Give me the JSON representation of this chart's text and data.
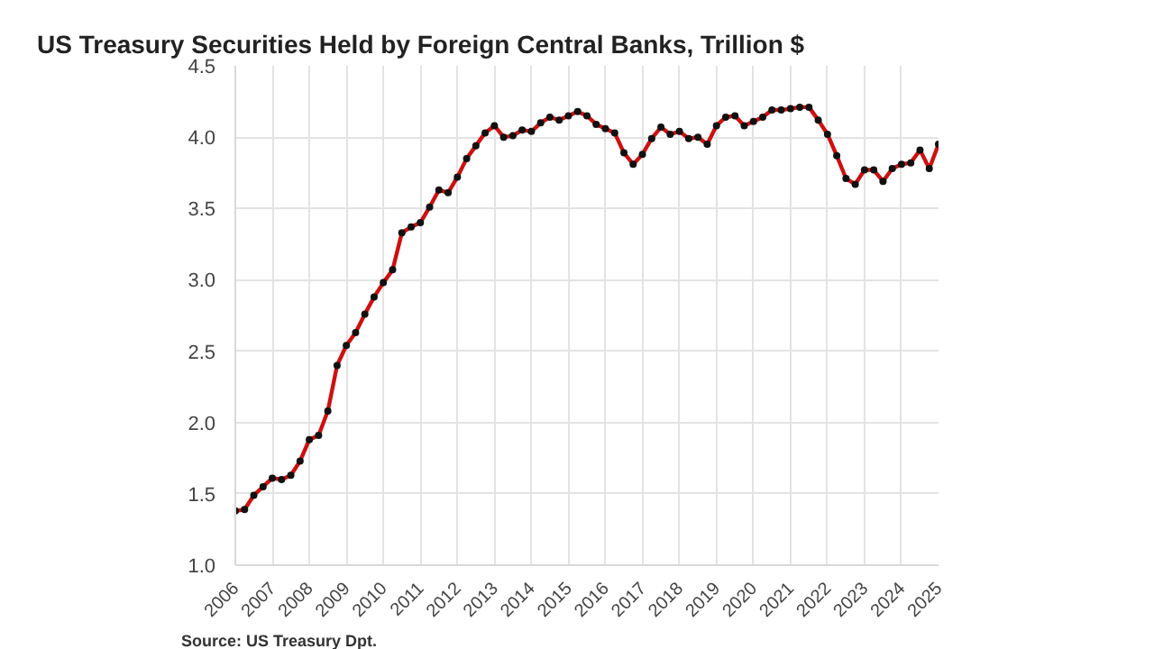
{
  "chart_data": {
    "type": "line",
    "title": "US Treasury Securities Held by Foreign Central Banks, Trillion $",
    "x": [
      2006.0,
      2006.25,
      2006.5,
      2006.75,
      2007.0,
      2007.25,
      2007.5,
      2007.75,
      2008.0,
      2008.25,
      2008.5,
      2008.75,
      2009.0,
      2009.25,
      2009.5,
      2009.75,
      2010.0,
      2010.25,
      2010.5,
      2010.75,
      2011.0,
      2011.25,
      2011.5,
      2011.75,
      2012.0,
      2012.25,
      2012.5,
      2012.75,
      2013.0,
      2013.25,
      2013.5,
      2013.75,
      2014.0,
      2014.25,
      2014.5,
      2014.75,
      2015.0,
      2015.25,
      2015.5,
      2015.75,
      2016.0,
      2016.25,
      2016.5,
      2016.75,
      2017.0,
      2017.25,
      2017.5,
      2017.75,
      2018.0,
      2018.25,
      2018.5,
      2018.75,
      2019.0,
      2019.25,
      2019.5,
      2019.75,
      2020.0,
      2020.25,
      2020.5,
      2020.75,
      2021.0,
      2021.25,
      2021.5,
      2021.75,
      2022.0,
      2022.25,
      2022.5,
      2022.75,
      2023.0,
      2023.25,
      2023.5,
      2023.75,
      2024.0,
      2024.25,
      2024.5,
      2024.75,
      2025.0
    ],
    "series": [
      {
        "color": "#cc1111",
        "values": [
          1.38,
          1.39,
          1.49,
          1.55,
          1.61,
          1.6,
          1.63,
          1.73,
          1.88,
          1.91,
          2.08,
          2.4,
          2.54,
          2.63,
          2.76,
          2.88,
          2.98,
          3.07,
          3.33,
          3.37,
          3.4,
          3.51,
          3.63,
          3.61,
          3.72,
          3.85,
          3.94,
          4.03,
          4.08,
          4.0,
          4.01,
          4.05,
          4.04,
          4.1,
          4.14,
          4.12,
          4.15,
          4.18,
          4.15,
          4.09,
          4.06,
          4.03,
          3.89,
          3.81,
          3.88,
          3.99,
          4.07,
          4.02,
          4.04,
          3.99,
          4.0,
          3.95,
          4.08,
          4.14,
          4.15,
          4.08,
          4.11,
          4.14,
          4.19,
          4.19,
          4.2,
          4.21,
          4.21,
          4.12,
          4.02,
          3.87,
          3.71,
          3.67,
          3.77,
          3.77,
          3.69,
          3.78,
          3.81,
          3.82,
          3.91,
          3.78,
          3.95
        ]
      }
    ],
    "xlim": [
      2006,
      2025
    ],
    "xticks": [
      2006,
      2007,
      2008,
      2009,
      2010,
      2011,
      2012,
      2013,
      2014,
      2015,
      2016,
      2017,
      2018,
      2019,
      2020,
      2021,
      2022,
      2023,
      2024,
      2025
    ],
    "ylim": [
      1.0,
      4.5
    ],
    "yticks": [
      {
        "value": 1.0,
        "label": "1.0"
      },
      {
        "value": 1.5,
        "label": "1.5"
      },
      {
        "value": 2.0,
        "label": "2.0"
      },
      {
        "value": 2.5,
        "label": "2.5"
      },
      {
        "value": 3.0,
        "label": "3.0"
      },
      {
        "value": 3.5,
        "label": "3.5"
      },
      {
        "value": 4.0,
        "label": "4.0"
      },
      {
        "value": 4.5,
        "label": "4.5"
      }
    ],
    "grid": true,
    "marker": "circle",
    "line_style": "solid",
    "annotations": [
      "Source: US Treasury  Dpt."
    ]
  }
}
